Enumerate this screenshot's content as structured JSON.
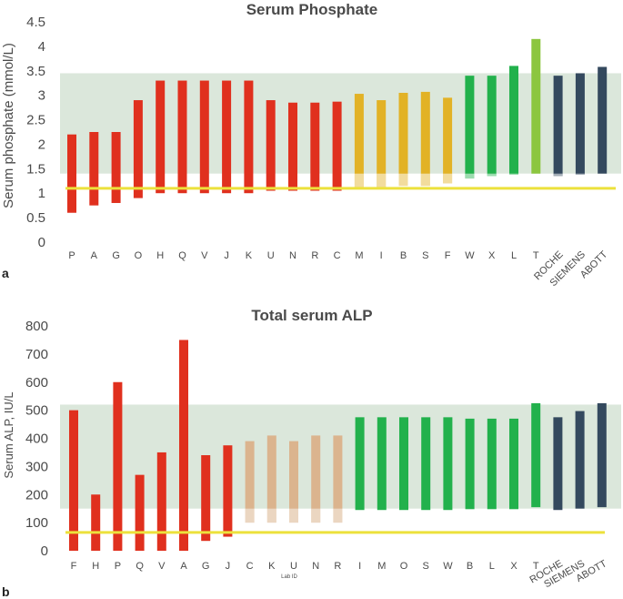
{
  "chart_data": [
    {
      "type": "bar",
      "panel": "a",
      "title": "Serum Phosphate",
      "ylabel": "Serum phosphate (mmol/L)",
      "xlabel": "",
      "ylim": [
        0,
        4.5
      ],
      "y_ticks": [
        "0",
        "0.5",
        "1",
        "1.5",
        "2",
        "2.5",
        "3",
        "3.5",
        "4",
        "4.5"
      ],
      "grid": false,
      "reference_band": [
        1.4,
        3.45
      ],
      "reference_line": 1.1,
      "categories": [
        "P",
        "A",
        "G",
        "O",
        "H",
        "Q",
        "V",
        "J",
        "K",
        "U",
        "N",
        "R",
        "C",
        "M",
        "I",
        "B",
        "S",
        "F",
        "W",
        "X",
        "L",
        "T",
        "ROCHE",
        "SIEMENS",
        "ABOTT"
      ],
      "ranges": [
        {
          "low": 0.6,
          "high": 2.2,
          "color": "#e0301e"
        },
        {
          "low": 0.75,
          "high": 2.25,
          "color": "#e0301e"
        },
        {
          "low": 0.8,
          "high": 2.25,
          "color": "#e0301e"
        },
        {
          "low": 0.9,
          "high": 2.9,
          "color": "#e0301e"
        },
        {
          "low": 1.0,
          "high": 3.3,
          "color": "#e0301e"
        },
        {
          "low": 1.0,
          "high": 3.3,
          "color": "#e0301e"
        },
        {
          "low": 1.0,
          "high": 3.3,
          "color": "#e0301e"
        },
        {
          "low": 1.0,
          "high": 3.3,
          "color": "#e0301e"
        },
        {
          "low": 1.0,
          "high": 3.3,
          "color": "#e0301e"
        },
        {
          "low": 1.05,
          "high": 2.9,
          "color": "#e0301e"
        },
        {
          "low": 1.05,
          "high": 2.85,
          "color": "#e0301e"
        },
        {
          "low": 1.05,
          "high": 2.85,
          "color": "#e0301e"
        },
        {
          "low": 1.05,
          "high": 2.87,
          "color": "#e0301e"
        },
        {
          "low": 1.1,
          "high": 3.03,
          "color": "#e2b226"
        },
        {
          "low": 1.1,
          "high": 2.9,
          "color": "#e2b226"
        },
        {
          "low": 1.15,
          "high": 3.05,
          "color": "#e2b226"
        },
        {
          "low": 1.15,
          "high": 3.07,
          "color": "#e2b226"
        },
        {
          "low": 1.2,
          "high": 2.95,
          "color": "#e2b226"
        },
        {
          "low": 1.3,
          "high": 3.4,
          "color": "#22b14c"
        },
        {
          "low": 1.35,
          "high": 3.4,
          "color": "#22b14c"
        },
        {
          "low": 1.38,
          "high": 3.6,
          "color": "#22b14c"
        },
        {
          "low": 1.4,
          "high": 4.15,
          "color": "#8cc63f"
        },
        {
          "low": 1.35,
          "high": 3.4,
          "color": "#34495e"
        },
        {
          "low": 1.38,
          "high": 3.45,
          "color": "#34495e"
        },
        {
          "low": 1.4,
          "high": 3.58,
          "color": "#34495e"
        }
      ]
    },
    {
      "type": "bar",
      "panel": "b",
      "title": "Total serum ALP",
      "ylabel": "Serum ALP, IU/L",
      "xlabel": "Lab ID",
      "ylim": [
        0,
        800
      ],
      "y_ticks": [
        "0",
        "100",
        "200",
        "300",
        "400",
        "500",
        "600",
        "700",
        "800"
      ],
      "grid": false,
      "reference_band": [
        150,
        520
      ],
      "reference_line": 65,
      "categories": [
        "F",
        "H",
        "P",
        "Q",
        "V",
        "A",
        "G",
        "J",
        "C",
        "K",
        "U",
        "N",
        "R",
        "I",
        "M",
        "O",
        "S",
        "W",
        "B",
        "L",
        "X",
        "T",
        "ROCHE",
        "SIEMENS",
        "ABOTT"
      ],
      "ranges": [
        {
          "low": 0,
          "high": 500,
          "color": "#e0301e"
        },
        {
          "low": 0,
          "high": 200,
          "color": "#e0301e"
        },
        {
          "low": 0,
          "high": 600,
          "color": "#e0301e"
        },
        {
          "low": 0,
          "high": 270,
          "color": "#e0301e"
        },
        {
          "low": 0,
          "high": 350,
          "color": "#e0301e"
        },
        {
          "low": 0,
          "high": 750,
          "color": "#e0301e"
        },
        {
          "low": 35,
          "high": 340,
          "color": "#e0301e"
        },
        {
          "low": 50,
          "high": 375,
          "color": "#e0301e"
        },
        {
          "low": 100,
          "high": 390,
          "color": "#dbb48e"
        },
        {
          "low": 100,
          "high": 410,
          "color": "#dbb48e"
        },
        {
          "low": 100,
          "high": 390,
          "color": "#dbb48e"
        },
        {
          "low": 100,
          "high": 410,
          "color": "#dbb48e"
        },
        {
          "low": 100,
          "high": 410,
          "color": "#dbb48e"
        },
        {
          "low": 145,
          "high": 475,
          "color": "#22b14c"
        },
        {
          "low": 145,
          "high": 475,
          "color": "#22b14c"
        },
        {
          "low": 145,
          "high": 475,
          "color": "#22b14c"
        },
        {
          "low": 145,
          "high": 475,
          "color": "#22b14c"
        },
        {
          "low": 145,
          "high": 475,
          "color": "#22b14c"
        },
        {
          "low": 148,
          "high": 470,
          "color": "#22b14c"
        },
        {
          "low": 148,
          "high": 470,
          "color": "#22b14c"
        },
        {
          "low": 148,
          "high": 470,
          "color": "#22b14c"
        },
        {
          "low": 155,
          "high": 525,
          "color": "#22b14c"
        },
        {
          "low": 145,
          "high": 475,
          "color": "#34495e"
        },
        {
          "low": 150,
          "high": 497,
          "color": "#34495e"
        },
        {
          "low": 155,
          "high": 525,
          "color": "#34495e"
        }
      ]
    }
  ],
  "colors": {
    "reference_band": "#dbe7db",
    "reference_line": "#ece13c",
    "below_band_fade": "#ffffff"
  }
}
